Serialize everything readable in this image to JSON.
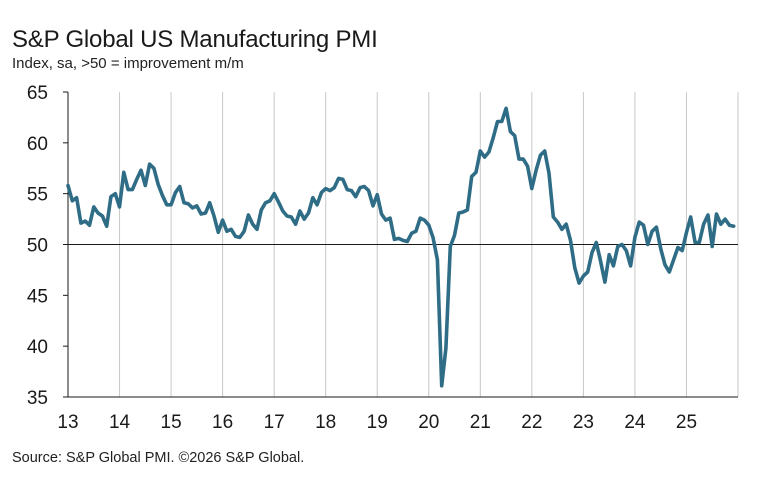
{
  "chart_data": {
    "type": "line",
    "title": "S&P Global US Manufacturing PMI",
    "subtitle": "Index, sa, >50 = improvement m/m",
    "source": "Source: S&P Global PMI. ©2026 S&P Global.",
    "xlabel": "",
    "ylabel": "",
    "ylim": [
      35,
      65
    ],
    "yticks": [
      35,
      40,
      45,
      50,
      55,
      60,
      65
    ],
    "xticks": [
      "13",
      "14",
      "15",
      "16",
      "17",
      "18",
      "19",
      "20",
      "21",
      "22",
      "23",
      "24",
      "25"
    ],
    "xlim": [
      2013,
      2026
    ],
    "reference_line": 50,
    "grid": "vertical at each year",
    "colors": {
      "line": "#2f6c86",
      "grid": "#c8c8c8",
      "axis": "#1a1a1a"
    },
    "series": [
      {
        "name": "S&P Global US Manufacturing PMI",
        "x": [
          2013.0,
          2013.083,
          2013.167,
          2013.25,
          2013.333,
          2013.417,
          2013.5,
          2013.583,
          2013.667,
          2013.75,
          2013.833,
          2013.917,
          2014.0,
          2014.083,
          2014.167,
          2014.25,
          2014.333,
          2014.417,
          2014.5,
          2014.583,
          2014.667,
          2014.75,
          2014.833,
          2014.917,
          2015.0,
          2015.083,
          2015.167,
          2015.25,
          2015.333,
          2015.417,
          2015.5,
          2015.583,
          2015.667,
          2015.75,
          2015.833,
          2015.917,
          2016.0,
          2016.083,
          2016.167,
          2016.25,
          2016.333,
          2016.417,
          2016.5,
          2016.583,
          2016.667,
          2016.75,
          2016.833,
          2016.917,
          2017.0,
          2017.083,
          2017.167,
          2017.25,
          2017.333,
          2017.417,
          2017.5,
          2017.583,
          2017.667,
          2017.75,
          2017.833,
          2017.917,
          2018.0,
          2018.083,
          2018.167,
          2018.25,
          2018.333,
          2018.417,
          2018.5,
          2018.583,
          2018.667,
          2018.75,
          2018.833,
          2018.917,
          2019.0,
          2019.083,
          2019.167,
          2019.25,
          2019.333,
          2019.417,
          2019.5,
          2019.583,
          2019.667,
          2019.75,
          2019.833,
          2019.917,
          2020.0,
          2020.083,
          2020.167,
          2020.25,
          2020.333,
          2020.417,
          2020.5,
          2020.583,
          2020.667,
          2020.75,
          2020.833,
          2020.917,
          2021.0,
          2021.083,
          2021.167,
          2021.25,
          2021.333,
          2021.417,
          2021.5,
          2021.583,
          2021.667,
          2021.75,
          2021.833,
          2021.917,
          2022.0,
          2022.083,
          2022.167,
          2022.25,
          2022.333,
          2022.417,
          2022.5,
          2022.583,
          2022.667,
          2022.75,
          2022.833,
          2022.917,
          2023.0,
          2023.083,
          2023.167,
          2023.25,
          2023.333,
          2023.417,
          2023.5,
          2023.583,
          2023.667,
          2023.75,
          2023.833,
          2023.917,
          2024.0,
          2024.083,
          2024.167,
          2024.25,
          2024.333,
          2024.417,
          2024.5,
          2024.583,
          2024.667,
          2024.75,
          2024.833,
          2024.917,
          2025.0,
          2025.083,
          2025.167,
          2025.25,
          2025.333,
          2025.417,
          2025.5,
          2025.583,
          2025.667,
          2025.75,
          2025.833,
          2025.917
        ],
        "values": [
          55.8,
          54.3,
          54.6,
          52.1,
          52.3,
          51.9,
          53.7,
          53.1,
          52.8,
          51.8,
          54.7,
          55.0,
          53.7,
          57.1,
          55.4,
          55.4,
          56.4,
          57.3,
          55.8,
          57.9,
          57.5,
          55.9,
          54.8,
          53.9,
          53.9,
          55.1,
          55.7,
          54.1,
          54.0,
          53.6,
          53.8,
          53.0,
          53.1,
          54.1,
          52.8,
          51.2,
          52.4,
          51.3,
          51.5,
          50.8,
          50.7,
          51.3,
          52.9,
          52.0,
          51.5,
          53.4,
          54.1,
          54.3,
          55.0,
          54.2,
          53.3,
          52.8,
          52.7,
          52.0,
          53.3,
          52.5,
          53.1,
          54.6,
          53.9,
          55.1,
          55.5,
          55.3,
          55.6,
          56.5,
          56.4,
          55.4,
          55.3,
          54.7,
          55.6,
          55.7,
          55.3,
          53.8,
          54.9,
          53.0,
          52.4,
          52.6,
          50.5,
          50.6,
          50.4,
          50.3,
          51.1,
          51.3,
          52.6,
          52.4,
          51.9,
          50.7,
          48.5,
          36.1,
          39.8,
          49.8,
          50.9,
          53.1,
          53.2,
          53.4,
          56.7,
          57.1,
          59.2,
          58.6,
          59.1,
          60.5,
          62.1,
          62.1,
          63.4,
          61.1,
          60.7,
          58.4,
          58.4,
          57.7,
          55.5,
          57.3,
          58.8,
          59.2,
          57.0,
          52.7,
          52.2,
          51.5,
          52.0,
          50.4,
          47.7,
          46.2,
          46.9,
          47.3,
          49.2,
          50.2,
          48.4,
          46.3,
          49.0,
          47.9,
          49.8,
          50.0,
          49.4,
          47.9,
          50.7,
          52.2,
          51.9,
          50.0,
          51.3,
          51.7,
          49.6,
          48.0,
          47.3,
          48.5,
          49.7,
          49.4,
          51.2,
          52.7,
          50.2,
          50.2,
          52.0,
          52.9,
          49.8,
          53.0,
          52.0,
          52.5,
          51.9,
          51.8
        ]
      }
    ]
  }
}
